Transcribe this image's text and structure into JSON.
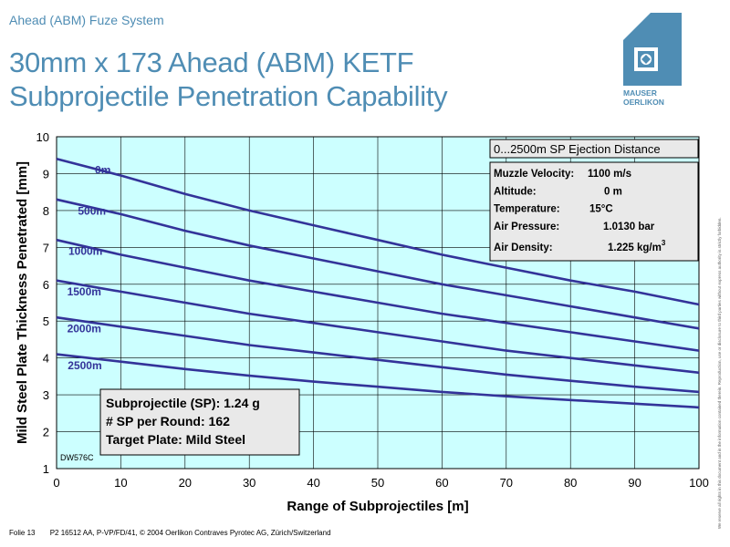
{
  "header": {
    "small_title": "Ahead (ABM) Fuze System",
    "title_line1": "30mm x 173 Ahead (ABM) KETF",
    "title_line2": "Subprojectile Penetration Capability"
  },
  "logo": {
    "line1": "MAUSER",
    "line2": "OERLIKON",
    "color": "#4f8db4"
  },
  "footer": {
    "folio": "Folie 13",
    "ref": "P2 16512 AA, P-VP/FD/41, © 2004 Oerlikon Contraves Pyrotec AG, Zürich/Switzerland"
  },
  "side_note": "We reserve all rights in this document and in the information contained therein. Reproduction, use or disclosure to third parties without express authority is strictly forbidden.",
  "chart_data": {
    "type": "line",
    "xlabel": "Range of Subprojectiles [m]",
    "ylabel": "Mild Steel Plate Thickness Penetrated [mm]",
    "xlim": [
      0,
      100
    ],
    "ylim": [
      1,
      10
    ],
    "xticks": [
      0,
      10,
      20,
      30,
      40,
      50,
      60,
      70,
      80,
      90,
      100
    ],
    "yticks": [
      1,
      2,
      3,
      4,
      5,
      6,
      7,
      8,
      9,
      10
    ],
    "grid": true,
    "plot_background": "#ccffff",
    "line_color": "#333399",
    "x": [
      0,
      10,
      20,
      30,
      40,
      50,
      60,
      70,
      80,
      90,
      100
    ],
    "series": [
      {
        "name": "0m",
        "values": [
          9.4,
          8.95,
          8.45,
          8.0,
          7.6,
          7.2,
          6.8,
          6.45,
          6.1,
          5.8,
          5.45
        ]
      },
      {
        "name": "500m",
        "values": [
          8.3,
          7.9,
          7.45,
          7.05,
          6.7,
          6.35,
          6.0,
          5.7,
          5.4,
          5.1,
          4.8
        ]
      },
      {
        "name": "1000m",
        "values": [
          7.2,
          6.8,
          6.45,
          6.1,
          5.8,
          5.5,
          5.2,
          4.95,
          4.7,
          4.45,
          4.2
        ]
      },
      {
        "name": "1500m",
        "values": [
          6.1,
          5.8,
          5.5,
          5.2,
          4.95,
          4.7,
          4.45,
          4.2,
          4.0,
          3.8,
          3.6
        ]
      },
      {
        "name": "2000m",
        "values": [
          5.1,
          4.85,
          4.6,
          4.35,
          4.15,
          3.95,
          3.75,
          3.55,
          3.38,
          3.22,
          3.08
        ]
      },
      {
        "name": "2500m",
        "values": [
          4.1,
          3.9,
          3.7,
          3.52,
          3.36,
          3.22,
          3.08,
          2.96,
          2.86,
          2.76,
          2.66
        ]
      }
    ],
    "label_positions": [
      {
        "name": "0m",
        "x": 7.2,
        "y": 9.0
      },
      {
        "name": "500m",
        "x": 5.5,
        "y": 7.88
      },
      {
        "name": "1000m",
        "x": 4.5,
        "y": 6.8
      },
      {
        "name": "1500m",
        "x": 4.3,
        "y": 5.7
      },
      {
        "name": "2000m",
        "x": 4.3,
        "y": 4.7
      },
      {
        "name": "2500m",
        "x": 4.4,
        "y": 3.7
      }
    ],
    "ejection_box": "0...2500m SP Ejection Distance",
    "conditions": [
      {
        "label": "Muzzle Velocity:",
        "value": "1100 m/s"
      },
      {
        "label": "Altitude:",
        "value": "0 m"
      },
      {
        "label": "Temperature:",
        "value": "15°C"
      },
      {
        "label": "Air Pressure:",
        "value": "1.0130 bar"
      },
      {
        "label": "Air Density:",
        "value": "1.225 kg/m",
        "sup": "3"
      }
    ],
    "info_box": [
      "Subprojectile (SP): 1.24 g",
      "# SP per Round: 162",
      "Target Plate: Mild Steel"
    ],
    "code_label": "DW576C"
  }
}
